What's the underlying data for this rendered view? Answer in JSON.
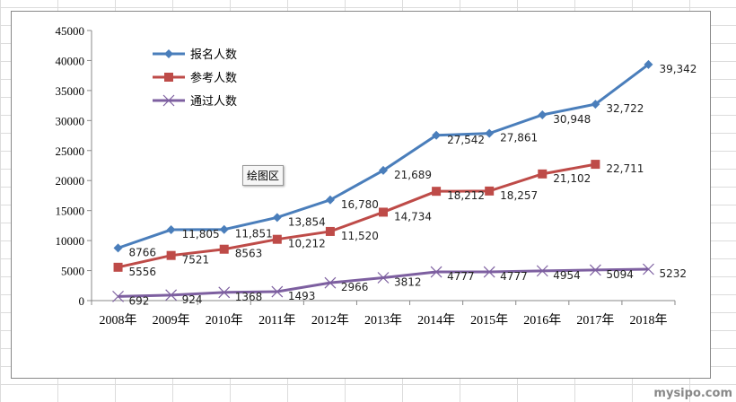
{
  "chart_data": {
    "type": "line",
    "categories": [
      "2008年",
      "2009年",
      "2010年",
      "2011年",
      "2012年",
      "2013年",
      "2014年",
      "2015年",
      "2016年",
      "2017年",
      "2018年"
    ],
    "ylim": [
      0,
      45000
    ],
    "yticks": [
      "0",
      "5000",
      "10000",
      "15000",
      "20000",
      "25000",
      "30000",
      "35000",
      "40000",
      "45000"
    ],
    "legend_position": "top-left",
    "series": [
      {
        "name": "报名人数",
        "color": "#4a7ebb",
        "marker": "diamond",
        "values": [
          8766,
          11805,
          11851,
          13854,
          16780,
          21689,
          27542,
          27861,
          30948,
          32722,
          39342
        ],
        "labels": [
          "8766",
          "11,805",
          "11,851",
          "13,854",
          "16,780",
          "21,689",
          "27,542",
          "27,861",
          "30,948",
          "32,722",
          "39,342"
        ]
      },
      {
        "name": "参考人数",
        "color": "#be4b48",
        "marker": "square",
        "values": [
          5556,
          7521,
          8563,
          10212,
          11520,
          14734,
          18212,
          18257,
          21102,
          22711,
          null
        ],
        "labels": [
          "5556",
          "7521",
          "8563",
          "10,212",
          "11,520",
          "14,734",
          "18,212",
          "18,257",
          "21,102",
          "22,711",
          null
        ]
      },
      {
        "name": "通过人数",
        "color": "#7d5fa0",
        "marker": "x",
        "values": [
          692,
          924,
          1368,
          1493,
          2966,
          3812,
          4777,
          4777,
          4954,
          5094,
          5232
        ],
        "labels": [
          "692",
          "924",
          "1368",
          "1493",
          "2966",
          "3812",
          "4777",
          "4777",
          "4954",
          "5094",
          "5232"
        ]
      }
    ]
  },
  "tooltip": "绘图区",
  "watermark": "mysipo.com"
}
